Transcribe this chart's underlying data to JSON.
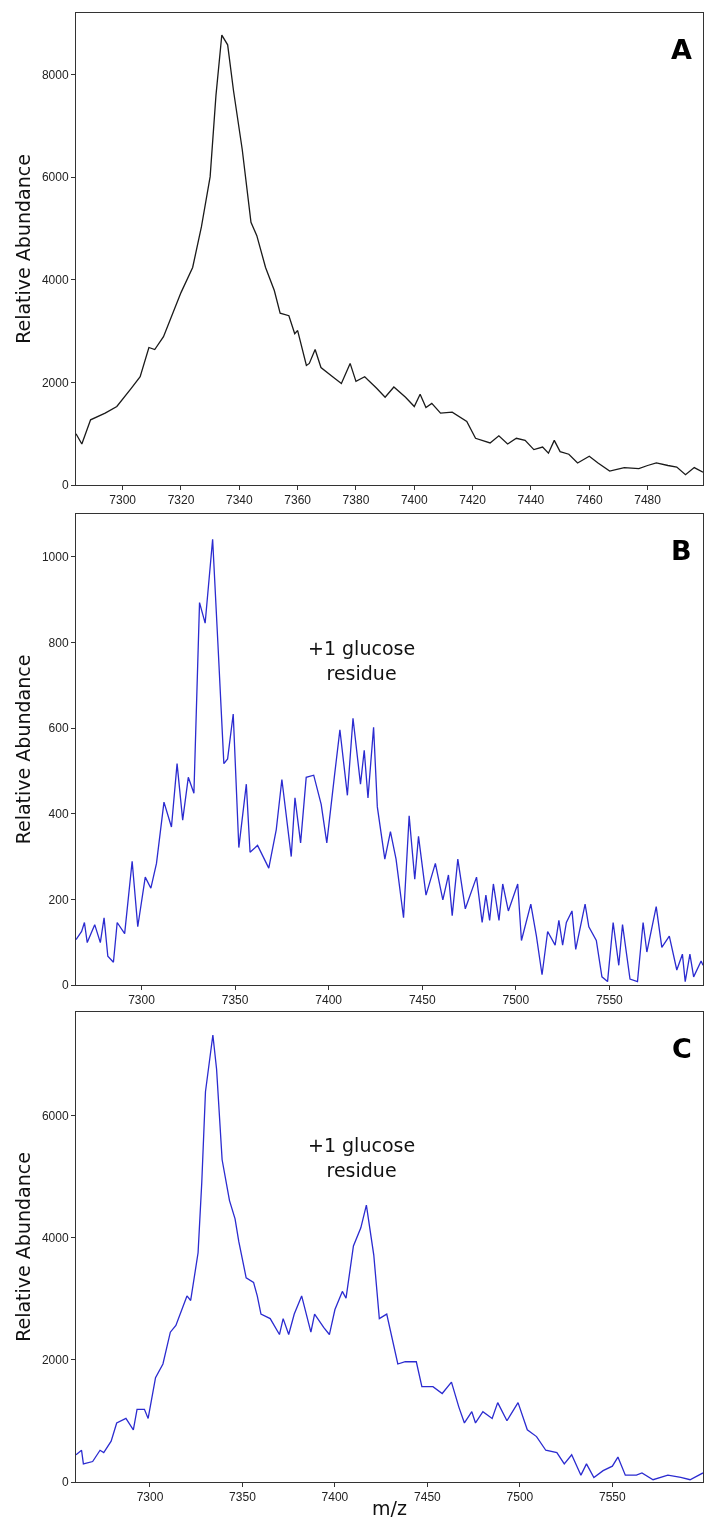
{
  "chart_data": [
    {
      "type": "line",
      "ylabel": "Relative Abundance",
      "annotations": [
        "A"
      ],
      "xlim": [
        7284,
        7499
      ],
      "ylim": [
        0,
        9200
      ],
      "xticks": [
        7300,
        7320,
        7340,
        7360,
        7380,
        7400,
        7420,
        7440,
        7460,
        7480
      ],
      "yticks": [
        0,
        2000,
        4000,
        6000,
        8000
      ],
      "series": [
        {
          "color": "#1a1a1a",
          "x": [
            7284,
            7286,
            7289,
            7294,
            7298,
            7303,
            7306,
            7309,
            7311,
            7314,
            7320,
            7324,
            7327,
            7330,
            7332,
            7334,
            7336,
            7338,
            7341,
            7344,
            7346,
            7349,
            7352,
            7354,
            7357,
            7359,
            7360,
            7363,
            7364,
            7366,
            7368,
            7372,
            7375,
            7378,
            7380,
            7383,
            7387,
            7390,
            7393,
            7397,
            7400,
            7402,
            7404,
            7406,
            7409,
            7413,
            7418,
            7421,
            7426,
            7429,
            7432,
            7435,
            7438,
            7441,
            7444,
            7446,
            7448,
            7450,
            7453,
            7456,
            7460,
            7463,
            7467,
            7472,
            7477,
            7480,
            7483,
            7487,
            7490,
            7493,
            7496,
            7499
          ],
          "values": [
            1000,
            800,
            1270,
            1400,
            1530,
            1890,
            2110,
            2680,
            2640,
            2890,
            3750,
            4240,
            5030,
            6010,
            7600,
            8770,
            8580,
            7690,
            6540,
            5120,
            4860,
            4240,
            3790,
            3350,
            3300,
            2950,
            3010,
            2330,
            2370,
            2640,
            2290,
            2110,
            1980,
            2370,
            2020,
            2110,
            1890,
            1710,
            1910,
            1710,
            1530,
            1770,
            1510,
            1590,
            1400,
            1420,
            1240,
            910,
            820,
            960,
            800,
            910,
            870,
            690,
            740,
            620,
            870,
            650,
            600,
            430,
            560,
            430,
            270,
            340,
            320,
            380,
            430,
            380,
            350,
            200,
            340,
            250
          ]
        }
      ]
    },
    {
      "type": "line",
      "ylabel": "Relative Abundance",
      "annotations": [
        "B",
        "+1 glucose\nresidue"
      ],
      "xlim": [
        7265,
        7600
      ],
      "ylim": [
        0,
        1100
      ],
      "xticks": [
        7300,
        7350,
        7400,
        7450,
        7500,
        7550
      ],
      "yticks": [
        0,
        200,
        400,
        600,
        800,
        1000
      ],
      "series": [
        {
          "color": "#2b2bd0",
          "x": [
            7265,
            7268,
            7269.5,
            7271,
            7275,
            7278,
            7280,
            7282,
            7285,
            7287,
            7291,
            7295,
            7298,
            7302,
            7305,
            7308,
            7312,
            7316,
            7319,
            7322,
            7325,
            7328,
            7331,
            7334,
            7338,
            7341,
            7344,
            7346,
            7349,
            7352,
            7356,
            7358,
            7362,
            7368,
            7372,
            7375,
            7380,
            7382,
            7385,
            7388,
            7392,
            7396,
            7399,
            7403,
            7406,
            7410,
            7413,
            7417,
            7419,
            7421,
            7424,
            7426,
            7430,
            7433,
            7436,
            7440,
            7443,
            7446,
            7448,
            7452,
            7457,
            7461,
            7464,
            7466,
            7469,
            7473,
            7479,
            7482,
            7484,
            7486,
            7488,
            7491,
            7493,
            7496,
            7501,
            7503,
            7508,
            7511,
            7514,
            7517,
            7521,
            7523,
            7525,
            7527,
            7530,
            7532,
            7537,
            7539,
            7543,
            7546,
            7549,
            7552,
            7555,
            7557,
            7561,
            7565,
            7568,
            7570,
            7575,
            7578,
            7582,
            7586,
            7589,
            7590.5,
            7593,
            7595,
            7599,
            7600
          ],
          "values": [
            106,
            125,
            146,
            99,
            141,
            99,
            157,
            67,
            53,
            146,
            120,
            289,
            136,
            252,
            226,
            284,
            427,
            369,
            517,
            385,
            485,
            448,
            893,
            845,
            1041,
            782,
            517,
            528,
            633,
            321,
            469,
            310,
            326,
            273,
            363,
            480,
            300,
            437,
            332,
            485,
            490,
            422,
            332,
            485,
            596,
            443,
            623,
            469,
            548,
            437,
            602,
            416,
            294,
            358,
            294,
            157,
            395,
            247,
            347,
            210,
            284,
            199,
            257,
            162,
            294,
            178,
            252,
            146,
            210,
            151,
            236,
            151,
            236,
            173,
            236,
            104,
            189,
            114,
            24,
            125,
            93,
            151,
            93,
            146,
            173,
            83,
            189,
            136,
            104,
            19,
            8,
            146,
            46,
            141,
            14,
            8,
            146,
            77,
            183,
            88,
            114,
            35,
            72,
            8,
            72,
            19,
            56,
            46
          ]
        }
      ]
    },
    {
      "type": "line",
      "ylabel": "Relative Abundance",
      "xlabel": "m/z",
      "annotations": [
        "C",
        "+1 glucose\nresidue"
      ],
      "xlim": [
        7260,
        7599
      ],
      "ylim": [
        0,
        7700
      ],
      "xticks": [
        7300,
        7350,
        7400,
        7450,
        7500,
        7550
      ],
      "yticks": [
        0,
        2000,
        4000,
        6000
      ],
      "series": [
        {
          "color": "#2b2bd0",
          "x": [
            7260,
            7263,
            7264,
            7269,
            7273,
            7275,
            7279,
            7282,
            7287,
            7291,
            7293,
            7297,
            7299,
            7303,
            7307,
            7311,
            7314,
            7320,
            7322,
            7326,
            7328,
            7330,
            7334,
            7336,
            7339,
            7343,
            7346,
            7348,
            7352,
            7356,
            7358,
            7360,
            7365,
            7370,
            7372,
            7375,
            7378,
            7382,
            7387,
            7389,
            7394,
            7397,
            7400,
            7404,
            7406,
            7410,
            7414,
            7417,
            7421,
            7424,
            7428,
            7434,
            7438,
            7444,
            7447,
            7453,
            7458,
            7463,
            7467,
            7470,
            7474,
            7476,
            7480,
            7485,
            7488,
            7493,
            7499,
            7504,
            7509,
            7514,
            7520,
            7524,
            7528,
            7533,
            7536,
            7540,
            7545,
            7550,
            7553,
            7557,
            7563,
            7566,
            7572,
            7580,
            7587,
            7592,
            7599
          ],
          "values": [
            446,
            520,
            297,
            335,
            520,
            483,
            669,
            967,
            1041,
            855,
            1190,
            1190,
            1041,
            1710,
            1933,
            2454,
            2565,
            3048,
            2974,
            3755,
            4907,
            6394,
            7323,
            6766,
            5279,
            4610,
            4312,
            3941,
            3346,
            3271,
            3048,
            2751,
            2677,
            2416,
            2677,
            2416,
            2751,
            3048,
            2454,
            2751,
            2528,
            2416,
            2825,
            3123,
            3011,
            3866,
            4164,
            4535,
            3718,
            2677,
            2751,
            1933,
            1970,
            1970,
            1561,
            1561,
            1450,
            1636,
            1227,
            967,
            1152,
            967,
            1152,
            1041,
            1301,
            1004,
            1301,
            855,
            744,
            520,
            483,
            297,
            446,
            112,
            297,
            74,
            186,
            260,
            409,
            112,
            112,
            149,
            37,
            112,
            74,
            37,
            149
          ]
        }
      ]
    }
  ]
}
